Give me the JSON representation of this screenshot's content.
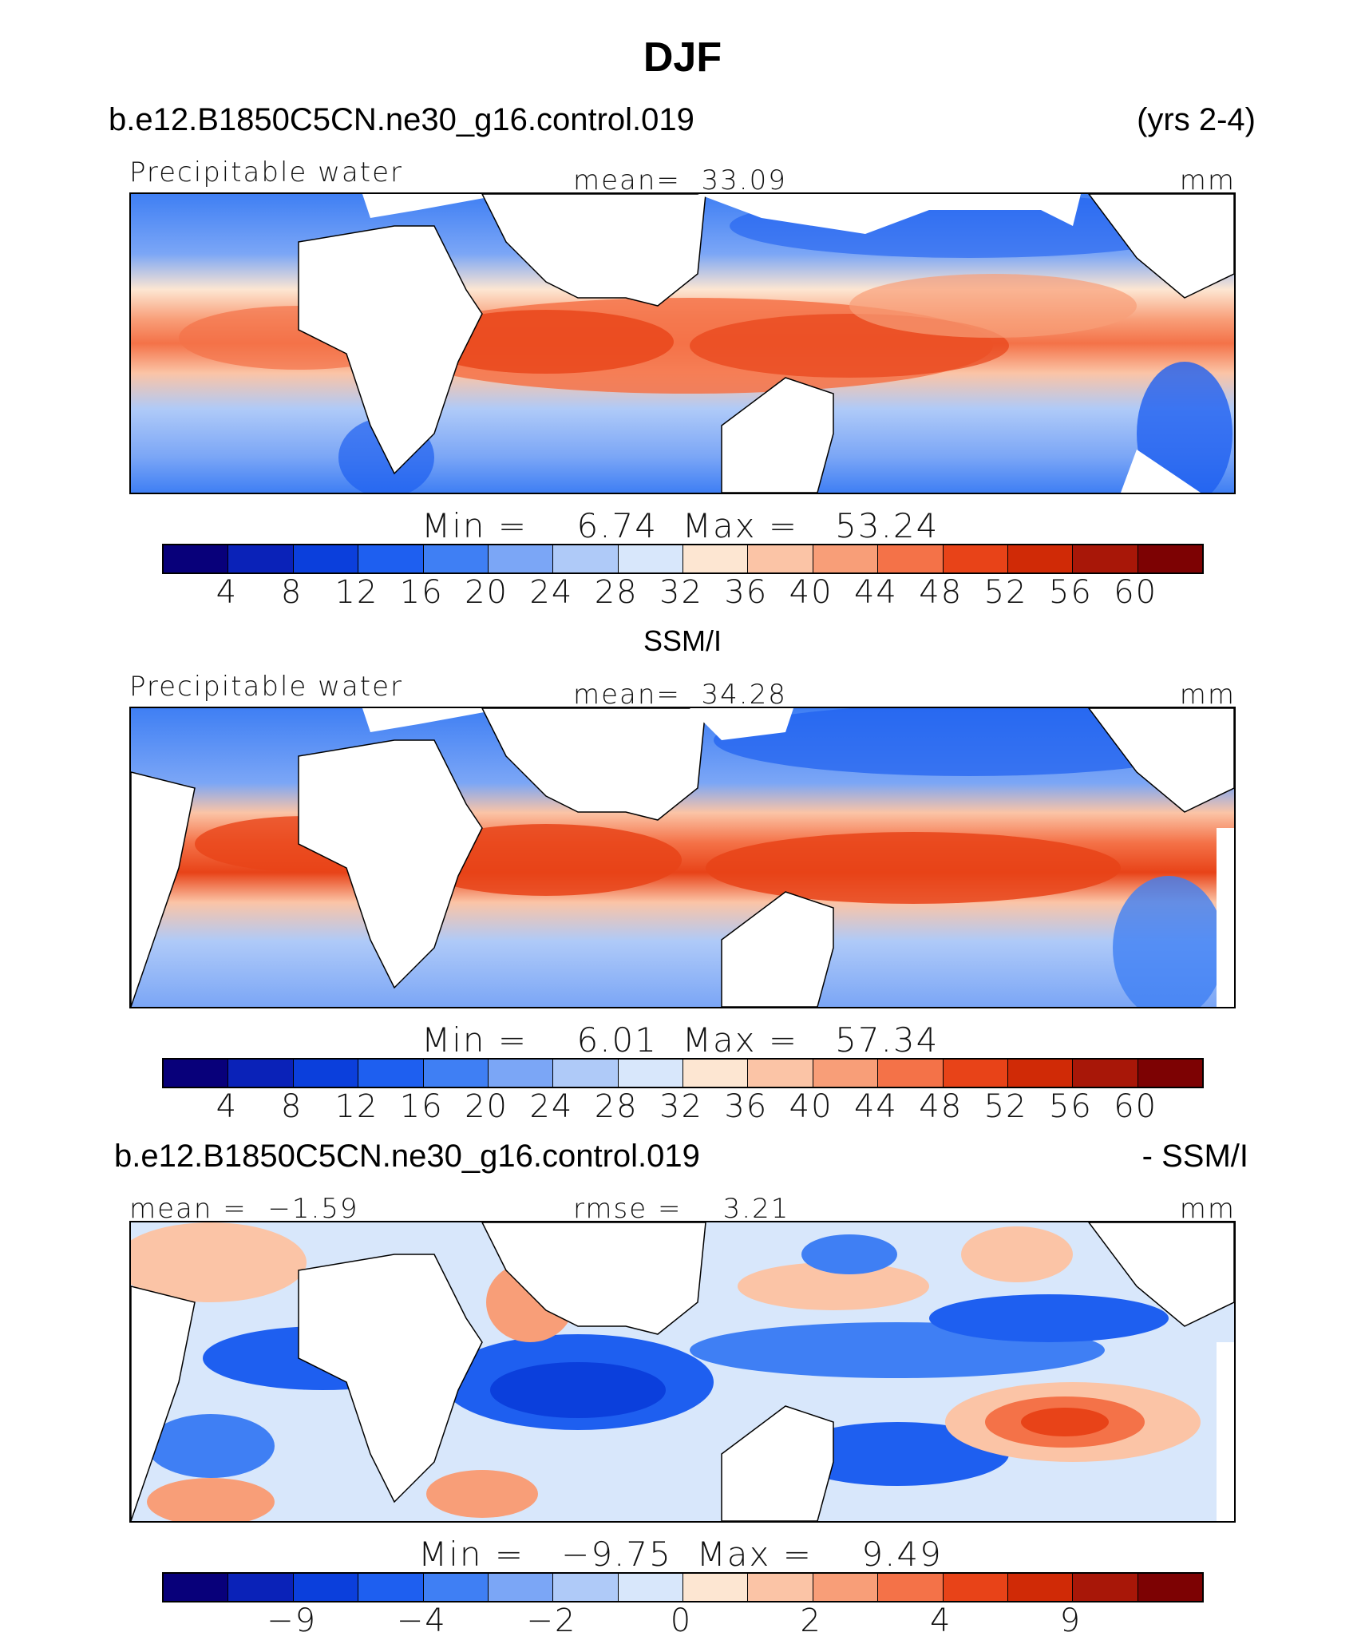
{
  "figure": {
    "season": "DJF",
    "colors": [
      "#08007a",
      "#0a22b8",
      "#0b3fdc",
      "#1e5ff0",
      "#3f7ff4",
      "#7ba6f6",
      "#afcaf8",
      "#d8e7fb",
      "#fde6d2",
      "#fbc4a6",
      "#f89e78",
      "#f47248",
      "#e84318",
      "#d02a06",
      "#a81708",
      "#7d0203"
    ]
  },
  "chart_data": [
    {
      "type": "heatmap",
      "case": "b.e12.B1850C5CN.ne30_g16.control.019",
      "years": "(yrs 2-4)",
      "variable": "Precipitable water",
      "mean_label": "mean=",
      "mean": "33.09",
      "units": "mm",
      "min_label": "Min  =",
      "min": "6.74",
      "max_label": "Max  =",
      "max": "53.24",
      "colorbar_ticks": [
        "4",
        "8",
        "12",
        "16",
        "20",
        "24",
        "28",
        "32",
        "36",
        "40",
        "44",
        "48",
        "52",
        "56",
        "60"
      ]
    },
    {
      "type": "heatmap",
      "case": "SSM/I",
      "variable": "Precipitable water",
      "mean_label": "mean=",
      "mean": "34.28",
      "units": "mm",
      "min_label": "Min  =",
      "min": "6.01",
      "max_label": "Max  =",
      "max": "57.34",
      "colorbar_ticks": [
        "4",
        "8",
        "12",
        "16",
        "20",
        "24",
        "28",
        "32",
        "36",
        "40",
        "44",
        "48",
        "52",
        "56",
        "60"
      ]
    },
    {
      "type": "heatmap",
      "case": "b.e12.B1850C5CN.ne30_g16.control.019",
      "case_right": "- SSM/I",
      "mean_label": "mean =",
      "mean": "−1.59",
      "rmse_label": "rmse =",
      "rmse": "3.21",
      "units": "mm",
      "min_label": "Min  =",
      "min": "−9.75",
      "max_label": "Max  =",
      "max": "9.49",
      "colorbar_ticks": [
        "−9",
        "−4",
        "−2",
        "0",
        "2",
        "4",
        "9"
      ]
    }
  ]
}
